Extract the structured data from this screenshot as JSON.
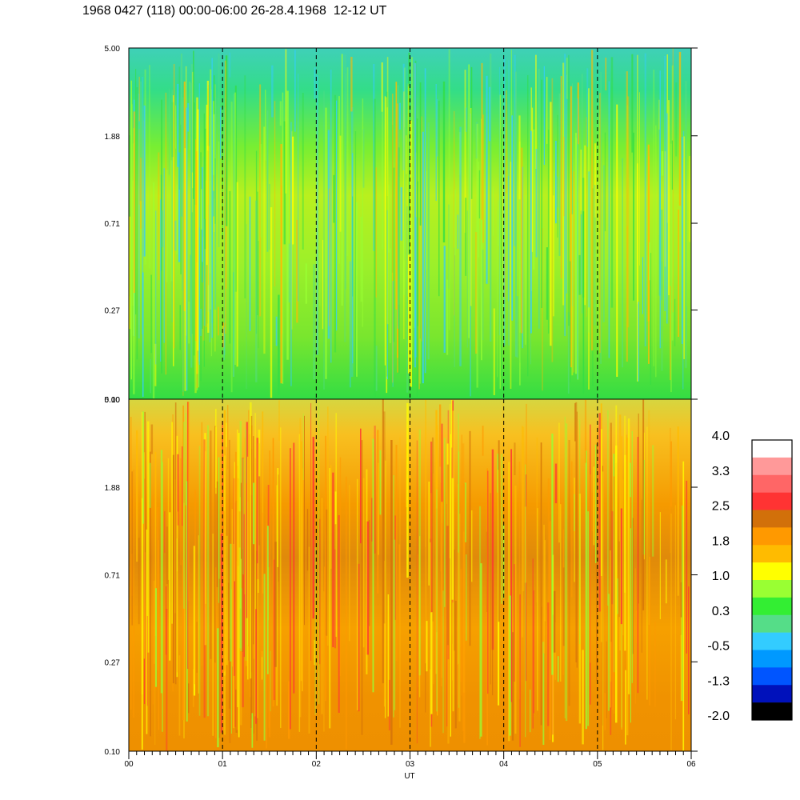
{
  "title": "1968 0427 (118) 00:00-06:00 26-28.4.1968  12-12 UT",
  "chart_data": [
    {
      "type": "heatmap",
      "panel": "top",
      "x_ticks": [
        "00",
        "01",
        "02",
        "03",
        "04",
        "05",
        "06"
      ],
      "xlim": [
        0,
        6
      ],
      "y_ticks": [
        "5.00",
        "1.88",
        "0.71",
        "0.27",
        "0.10"
      ],
      "yscale": "log",
      "ylim": [
        0.1,
        5.0
      ],
      "dominant_levels": [
        0.3,
        1.0
      ],
      "vertical_dashed_lines": [
        1,
        2,
        3,
        4,
        5
      ]
    },
    {
      "type": "heatmap",
      "panel": "bottom",
      "x_ticks": [
        "00",
        "01",
        "02",
        "03",
        "04",
        "05",
        "06"
      ],
      "xlim": [
        0,
        6
      ],
      "xlabel": "UT",
      "y_ticks": [
        "5.00",
        "1.88",
        "0.71",
        "0.27",
        "0.10"
      ],
      "yscale": "log",
      "ylim": [
        0.1,
        5.0
      ],
      "dominant_levels": [
        1.4,
        2.2
      ],
      "vertical_dashed_lines": [
        1,
        2,
        3,
        4,
        5
      ]
    }
  ],
  "colorbar": {
    "labels": [
      "4.0",
      "3.3",
      "2.5",
      "1.8",
      "1.0",
      "0.3",
      "-0.5",
      "-1.3",
      "-2.0"
    ],
    "colors": [
      "#ffffff",
      "#ff9999",
      "#ff6666",
      "#ff3333",
      "#d2700a",
      "#ff9900",
      "#ffbb00",
      "#ffff00",
      "#99ff33",
      "#33ee33",
      "#55dd88",
      "#33ccff",
      "#0099ff",
      "#0055ff",
      "#0011bb",
      "#000000"
    ]
  }
}
